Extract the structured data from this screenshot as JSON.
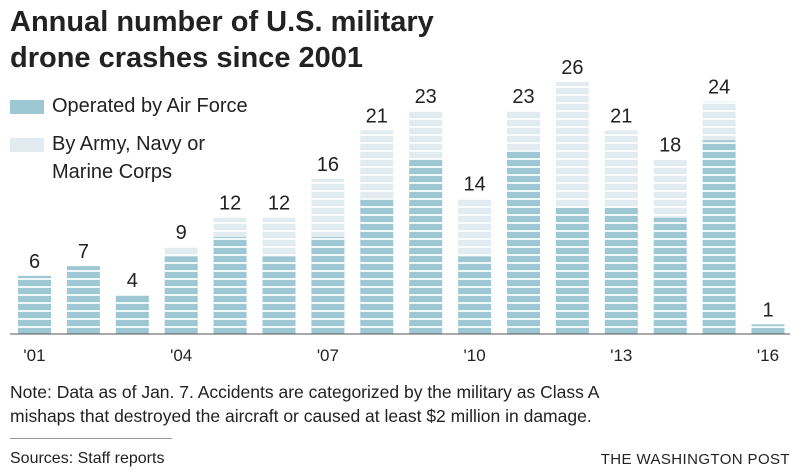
{
  "chart_data": {
    "type": "bar",
    "stacked": true,
    "title": "Annual number of U.S. military drone crashes since 2001",
    "categories": [
      "2001",
      "2002",
      "2003",
      "2004",
      "2005",
      "2006",
      "2007",
      "2008",
      "2009",
      "2010",
      "2011",
      "2012",
      "2013",
      "2014",
      "2015",
      "2016"
    ],
    "tick_labels": {
      "2001": "'01",
      "2004": "'04",
      "2007": "'07",
      "2010": "'10",
      "2013": "'13",
      "2016": "'16"
    },
    "series": [
      {
        "name": "Operated by Air Force",
        "color": "#9cc7d3",
        "values": [
          6,
          7,
          4,
          8,
          10,
          8,
          10,
          14,
          18,
          8,
          19,
          13,
          13,
          12,
          20,
          1
        ]
      },
      {
        "name": "By Army, Navy or Marine Corps",
        "color": "#e2ebf0",
        "values": [
          0,
          0,
          0,
          1,
          2,
          4,
          6,
          7,
          5,
          6,
          4,
          13,
          8,
          6,
          4,
          0
        ]
      }
    ],
    "totals": [
      6,
      7,
      4,
      9,
      12,
      12,
      16,
      21,
      23,
      14,
      23,
      26,
      21,
      18,
      24,
      1
    ],
    "ylim": [
      0,
      26
    ],
    "grid": false,
    "legend_position": "top-left"
  },
  "legend": {
    "air_force": "Operated by Air Force",
    "other_line1": "By Army, Navy or",
    "other_line2": "Marine Corps"
  },
  "title_line1": "Annual number of U.S. military",
  "title_line2": "drone crashes since 2001",
  "note_line1": "Note: Data as of Jan. 7. Accidents are categorized by the military as Class A",
  "note_line2": "mishaps that destroyed the aircraft or caused at least $2 million in damage.",
  "sources": "Sources: Staff reports",
  "brand": "THE WASHINGTON POST"
}
